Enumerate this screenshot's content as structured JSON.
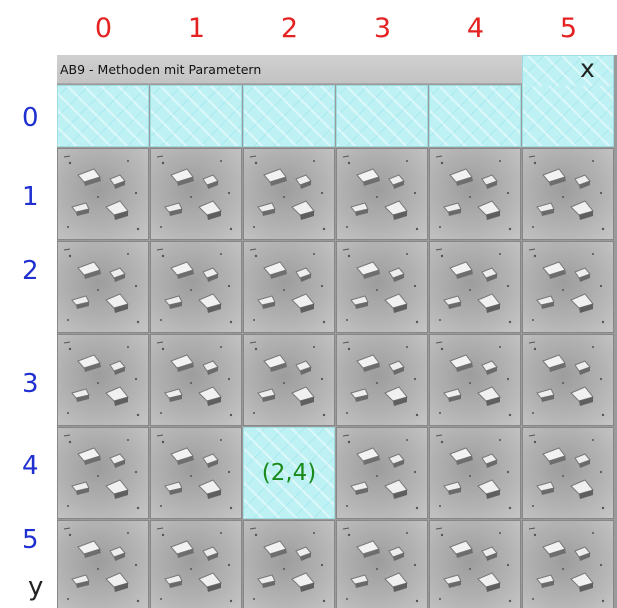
{
  "window": {
    "title": "AB9 - Methoden mit Parametern"
  },
  "axes": {
    "x_labels": [
      "0",
      "1",
      "2",
      "3",
      "4",
      "5"
    ],
    "y_labels": [
      "0",
      "1",
      "2",
      "3",
      "4",
      "5"
    ],
    "x_axis_name": "x",
    "y_axis_name": "y"
  },
  "grid": {
    "columns": 6,
    "rows": 6,
    "cells": [
      [
        "water",
        "water",
        "water",
        "water",
        "water",
        "water"
      ],
      [
        "rock",
        "rock",
        "rock",
        "rock",
        "rock",
        "rock"
      ],
      [
        "rock",
        "rock",
        "rock",
        "rock",
        "rock",
        "rock"
      ],
      [
        "rock",
        "rock",
        "rock",
        "rock",
        "rock",
        "rock"
      ],
      [
        "rock",
        "rock",
        "water",
        "rock",
        "rock",
        "rock"
      ],
      [
        "rock",
        "rock",
        "rock",
        "rock",
        "rock",
        "rock"
      ]
    ],
    "marked_cell": {
      "col": 2,
      "row": 4,
      "label": "(2,4)"
    }
  },
  "colors": {
    "x_label": "#e52121",
    "y_label": "#1f2fd0",
    "cell_label": "#1a8a1a",
    "water": "#bdf1f4",
    "rock": "#b2b2b2"
  }
}
